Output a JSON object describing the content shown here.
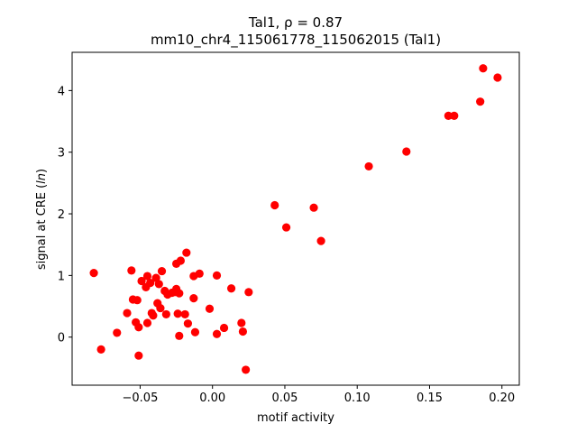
{
  "chart_data": {
    "type": "scatter",
    "title_line1": "Tal1, ρ = 0.87",
    "title_line2": "mm10_chr4_115061778_115062015 (Tal1)",
    "xlabel": "motif activity",
    "ylabel": "signal at CRE (ln)",
    "xlim": [
      -0.097,
      0.212
    ],
    "ylim": [
      -0.78,
      4.62
    ],
    "xticks": [
      -0.05,
      0.0,
      0.05,
      0.1,
      0.15,
      0.2
    ],
    "xtick_labels": [
      "−0.05",
      "0.00",
      "0.05",
      "0.10",
      "0.15",
      "0.20"
    ],
    "yticks": [
      0,
      1,
      2,
      3,
      4
    ],
    "ytick_labels": [
      "0",
      "1",
      "2",
      "3",
      "4"
    ],
    "marker_color": "#ff0000",
    "grid": false,
    "points": [
      {
        "x": -0.082,
        "y": 1.04
      },
      {
        "x": -0.077,
        "y": -0.2
      },
      {
        "x": -0.066,
        "y": 0.07
      },
      {
        "x": -0.059,
        "y": 0.39
      },
      {
        "x": -0.056,
        "y": 1.08
      },
      {
        "x": -0.055,
        "y": 0.61
      },
      {
        "x": -0.053,
        "y": 0.24
      },
      {
        "x": -0.052,
        "y": 0.6
      },
      {
        "x": -0.051,
        "y": 0.16
      },
      {
        "x": -0.051,
        "y": -0.3
      },
      {
        "x": -0.049,
        "y": 0.91
      },
      {
        "x": -0.046,
        "y": 0.81
      },
      {
        "x": -0.045,
        "y": 0.99
      },
      {
        "x": -0.045,
        "y": 0.23
      },
      {
        "x": -0.043,
        "y": 0.88
      },
      {
        "x": -0.042,
        "y": 0.39
      },
      {
        "x": -0.041,
        "y": 0.35
      },
      {
        "x": -0.039,
        "y": 0.96
      },
      {
        "x": -0.038,
        "y": 0.55
      },
      {
        "x": -0.037,
        "y": 0.86
      },
      {
        "x": -0.036,
        "y": 0.47
      },
      {
        "x": -0.035,
        "y": 1.07
      },
      {
        "x": -0.033,
        "y": 0.75
      },
      {
        "x": -0.032,
        "y": 0.37
      },
      {
        "x": -0.031,
        "y": 0.69
      },
      {
        "x": -0.028,
        "y": 0.72
      },
      {
        "x": -0.026,
        "y": 0.73
      },
      {
        "x": -0.025,
        "y": 1.19
      },
      {
        "x": -0.025,
        "y": 0.78
      },
      {
        "x": -0.024,
        "y": 0.38
      },
      {
        "x": -0.023,
        "y": 0.71
      },
      {
        "x": -0.023,
        "y": 0.02
      },
      {
        "x": -0.022,
        "y": 1.24
      },
      {
        "x": -0.019,
        "y": 0.37
      },
      {
        "x": -0.018,
        "y": 1.37
      },
      {
        "x": -0.017,
        "y": 0.22
      },
      {
        "x": -0.013,
        "y": 0.99
      },
      {
        "x": -0.013,
        "y": 0.63
      },
      {
        "x": -0.012,
        "y": 0.08
      },
      {
        "x": -0.009,
        "y": 1.03
      },
      {
        "x": -0.002,
        "y": 0.46
      },
      {
        "x": 0.003,
        "y": 1.0
      },
      {
        "x": 0.003,
        "y": 0.05
      },
      {
        "x": 0.008,
        "y": 0.15
      },
      {
        "x": 0.013,
        "y": 0.79
      },
      {
        "x": 0.02,
        "y": 0.23
      },
      {
        "x": 0.021,
        "y": 0.09
      },
      {
        "x": 0.023,
        "y": -0.53
      },
      {
        "x": 0.025,
        "y": 0.73
      },
      {
        "x": 0.043,
        "y": 2.14
      },
      {
        "x": 0.051,
        "y": 1.78
      },
      {
        "x": 0.07,
        "y": 2.1
      },
      {
        "x": 0.075,
        "y": 1.56
      },
      {
        "x": 0.108,
        "y": 2.77
      },
      {
        "x": 0.134,
        "y": 3.01
      },
      {
        "x": 0.163,
        "y": 3.59
      },
      {
        "x": 0.167,
        "y": 3.59
      },
      {
        "x": 0.185,
        "y": 3.82
      },
      {
        "x": 0.187,
        "y": 4.36
      },
      {
        "x": 0.197,
        "y": 4.21
      }
    ]
  }
}
